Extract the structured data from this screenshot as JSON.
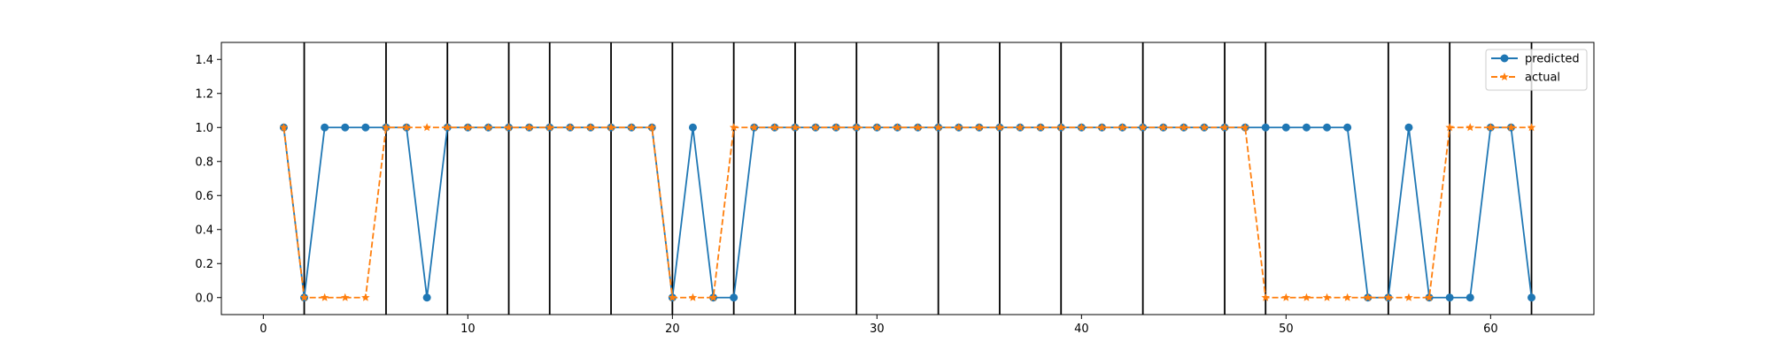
{
  "chart_data": {
    "type": "line",
    "title": "",
    "xlabel": "",
    "ylabel": "",
    "xlim": [
      -2.05,
      65.05
    ],
    "ylim": [
      -0.1,
      1.5
    ],
    "grid": false,
    "legend_position": "upper right",
    "x_ticks": [
      0,
      10,
      20,
      30,
      40,
      50,
      60
    ],
    "y_ticks": [
      0.0,
      0.2,
      0.4,
      0.6,
      0.8,
      1.0,
      1.2,
      1.4
    ],
    "vlines": [
      2,
      6,
      9,
      12,
      14,
      17,
      20,
      23,
      26,
      29,
      33,
      36,
      39,
      43,
      47,
      49,
      55,
      58,
      62
    ],
    "x": [
      1,
      2,
      3,
      4,
      5,
      6,
      7,
      8,
      9,
      10,
      11,
      12,
      13,
      14,
      15,
      16,
      17,
      18,
      19,
      20,
      21,
      22,
      23,
      24,
      25,
      26,
      27,
      28,
      29,
      30,
      31,
      32,
      33,
      34,
      35,
      36,
      37,
      38,
      39,
      40,
      41,
      42,
      43,
      44,
      45,
      46,
      47,
      48,
      49,
      50,
      51,
      52,
      53,
      54,
      55,
      56,
      57,
      58,
      59,
      60,
      61,
      62
    ],
    "series": [
      {
        "name": "predicted",
        "color": "#1f77b4",
        "line_style": "solid",
        "marker": "circle",
        "values": [
          1,
          0,
          1,
          1,
          1,
          1,
          1,
          0,
          1,
          1,
          1,
          1,
          1,
          1,
          1,
          1,
          1,
          1,
          1,
          0,
          1,
          0,
          0,
          1,
          1,
          1,
          1,
          1,
          1,
          1,
          1,
          1,
          1,
          1,
          1,
          1,
          1,
          1,
          1,
          1,
          1,
          1,
          1,
          1,
          1,
          1,
          1,
          1,
          1,
          1,
          1,
          1,
          1,
          0,
          0,
          1,
          0,
          0,
          0,
          1,
          1,
          0
        ]
      },
      {
        "name": "actual",
        "color": "#ff7f0e",
        "line_style": "dashed",
        "marker": "star",
        "values": [
          1,
          0,
          0,
          0,
          0,
          1,
          1,
          1,
          1,
          1,
          1,
          1,
          1,
          1,
          1,
          1,
          1,
          1,
          1,
          0,
          0,
          0,
          1,
          1,
          1,
          1,
          1,
          1,
          1,
          1,
          1,
          1,
          1,
          1,
          1,
          1,
          1,
          1,
          1,
          1,
          1,
          1,
          1,
          1,
          1,
          1,
          1,
          1,
          0,
          0,
          0,
          0,
          0,
          0,
          0,
          0,
          0,
          1,
          1,
          1,
          1,
          1
        ]
      }
    ]
  }
}
